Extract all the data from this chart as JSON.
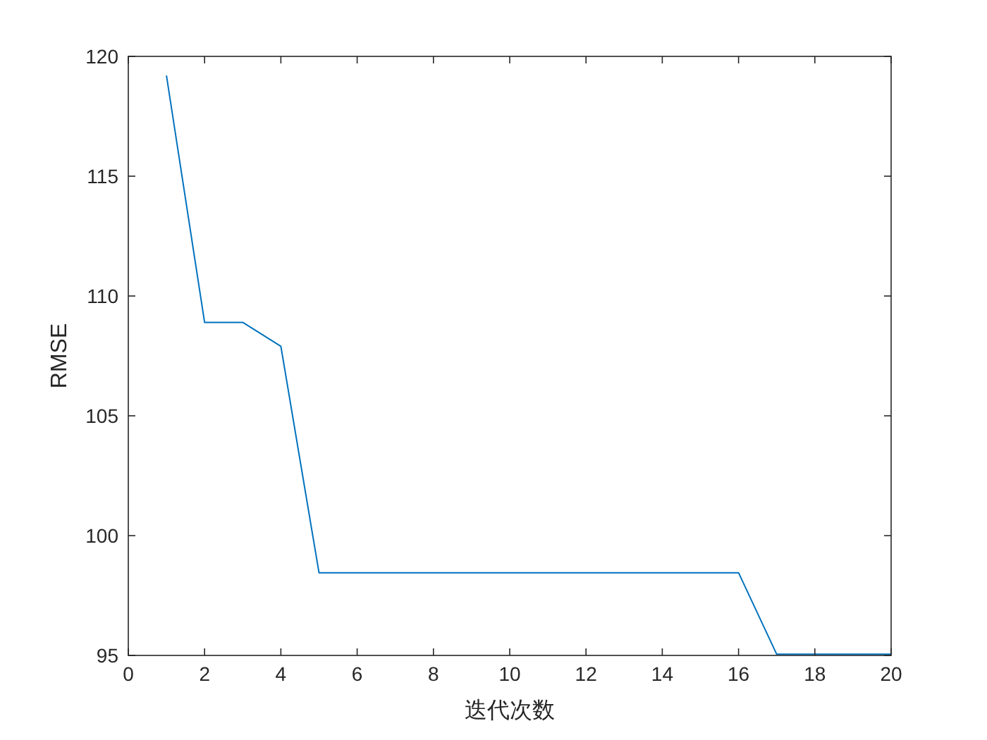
{
  "chart_data": {
    "type": "line",
    "xlabel": "迭代次数",
    "ylabel": "RMSE",
    "x": [
      1,
      2,
      3,
      4,
      5,
      6,
      7,
      8,
      9,
      10,
      11,
      12,
      13,
      14,
      15,
      16,
      17,
      18,
      19,
      20
    ],
    "series": [
      {
        "color": "#0072bd",
        "values": [
          119.2,
          108.9,
          108.9,
          107.9,
          98.45,
          98.45,
          98.45,
          98.45,
          98.45,
          98.45,
          98.45,
          98.45,
          98.45,
          98.45,
          98.45,
          98.45,
          95.05,
          95.05,
          95.05,
          95.05
        ]
      }
    ],
    "xlim": [
      0,
      20
    ],
    "xticks": [
      0,
      2,
      4,
      6,
      8,
      10,
      12,
      14,
      16,
      18,
      20
    ],
    "ylim": [
      95,
      120
    ],
    "yticks": [
      95,
      100,
      105,
      110,
      115,
      120
    ],
    "grid": false,
    "marker": "none",
    "line_style": "solid"
  }
}
